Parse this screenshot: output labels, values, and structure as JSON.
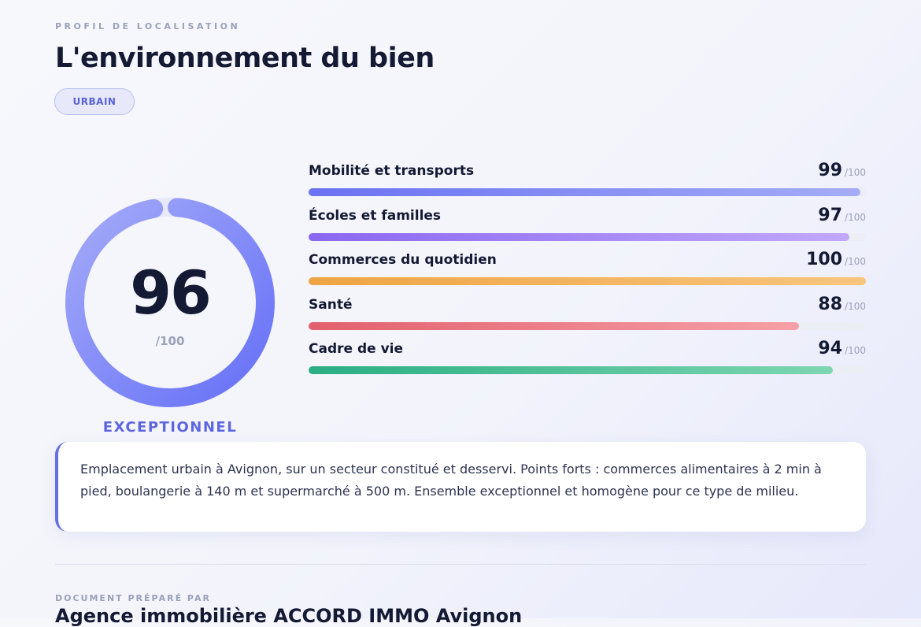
{
  "header": {
    "eyebrow": "PROFIL DE LOCALISATION",
    "title": "L'environnement du bien",
    "badge": "URBAIN"
  },
  "overall": {
    "score": 96,
    "max": "/100",
    "rating": "EXCEPTIONNEL",
    "gauge_gradient": [
      "#6670f7",
      "#a3aaf8"
    ],
    "gauge_track": "#e7e9fb"
  },
  "categories": [
    {
      "label": "Mobilité et transports",
      "score": 99,
      "max": "/100",
      "colors": [
        "#6a72f2",
        "#a5acf6"
      ]
    },
    {
      "label": "Écoles et familles",
      "score": 97,
      "max": "/100",
      "colors": [
        "#8a67f1",
        "#c1a8fb"
      ]
    },
    {
      "label": "Commerces du quotidien",
      "score": 100,
      "max": "/100",
      "colors": [
        "#eea444",
        "#f8c57d"
      ]
    },
    {
      "label": "Santé",
      "score": 88,
      "max": "/100",
      "colors": [
        "#e2606e",
        "#f6a0a6"
      ]
    },
    {
      "label": "Cadre de vie",
      "score": 94,
      "max": "/100",
      "colors": [
        "#2aae83",
        "#7dd6b1"
      ]
    }
  ],
  "summary": "Emplacement urbain à Avignon, sur un secteur constitué et desservi. Points forts : commerces alimentaires à 2 min à pied, boulangerie à 140 m et supermarché à 500 m. Ensemble exceptionnel et homogène pour ce type de milieu.",
  "footer": {
    "label": "DOCUMENT PRÉPARÉ PAR",
    "agency": "Agence immobilière ACCORD IMMO Avignon"
  }
}
